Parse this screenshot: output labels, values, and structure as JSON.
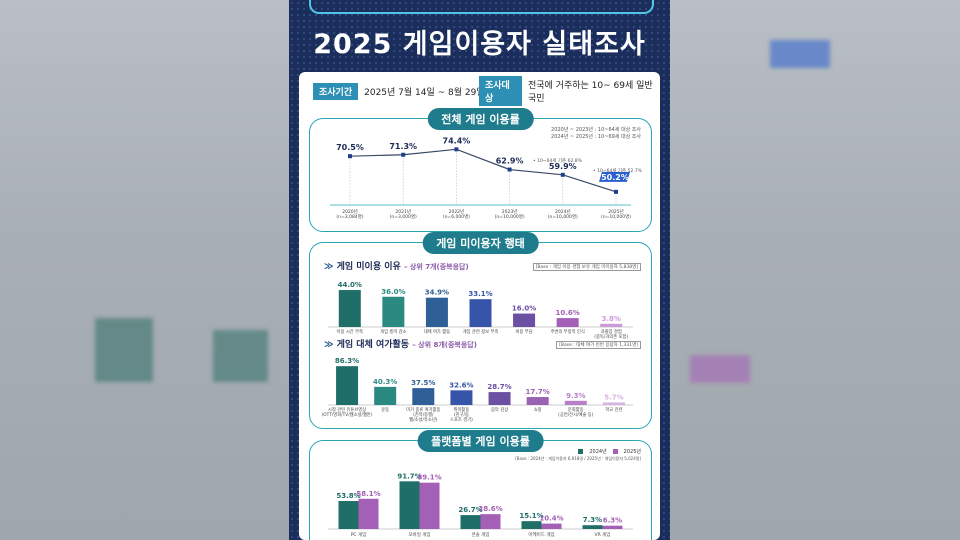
{
  "title": "2025 게임이용자 실태조사",
  "info": {
    "period_tag": "조사기간",
    "period": "2025년 7월 14일 ~ 8월 29일",
    "target_tag": "조사대상",
    "target": "전국에 거주하는 10~ 69세 일반국민"
  },
  "overall": {
    "pill": "전체 게임 이용률",
    "note1": "2020년 ~ 2023년 : 10~64세 대상 조사",
    "note2": "2024년 ~ 2025년 : 10~69세 대상 조사",
    "ann1": "• 10~64세 기준 62.8%",
    "ann2": "• 10~64세 기준 52.7%"
  },
  "nonuser": {
    "pill": "게임 미이용자 행태",
    "reason_title": "게임 미이용 이유",
    "reason_suffix": "– 상위 7개(중복응답)",
    "reason_base": "[Base : 게임 이용 경험 보유 게임 미이용자 5,838명]",
    "alt_title": "게임 대체 여가활동",
    "alt_suffix": "– 상위 8개(중복응답)",
    "alt_base": "[Base : 대체 여가 빈번 응답자 1,331명]"
  },
  "platform": {
    "pill": "플랫폼별 게임 이용률",
    "legend_2024": "2024년",
    "legend_2025": "2025년",
    "base": "[Base : 2024년 : 게임이용자 6,918명 / 2025년 : 게임이용자 5,024명]"
  },
  "chart_data": [
    {
      "type": "line",
      "title": "전체 게임 이용률",
      "x": [
        "2020년\n(n=3,084명)",
        "2021년\n(n=3,000명)",
        "2022년\n(n=6,000명)",
        "2023년\n(n=10,000명)",
        "2024년\n(n=10,000명)",
        "2025년\n(n=10,000명)"
      ],
      "values": [
        70.5,
        71.3,
        74.4,
        62.9,
        59.9,
        50.2
      ],
      "labels": [
        "70.5%",
        "71.3%",
        "74.4%",
        "62.9%",
        "59.9%",
        "50.2%"
      ],
      "colors": {
        "line": "#3a4a66",
        "point": "#1f3d8a",
        "highlight": "#2a5fd0"
      }
    },
    {
      "type": "bar",
      "title": "게임 미이용 이유",
      "categories": [
        "이용 시간 부족",
        "게임 흥미 감소",
        "대체 여가 활동",
        "게임 관련 정보 부족",
        "비용 부담",
        "주변의 부정적 인식",
        "과몰입 경험\n(중독/과의존 포함)"
      ],
      "values": [
        44.0,
        36.0,
        34.9,
        33.1,
        16.0,
        10.6,
        3.8
      ],
      "labels": [
        "44.0%",
        "36.0%",
        "34.9%",
        "33.1%",
        "16.0%",
        "10.6%",
        "3.8%"
      ],
      "colors": [
        "#1f6f68",
        "#2a8a82",
        "#2e5f96",
        "#3654a8",
        "#6b4fa3",
        "#a45fb7",
        "#cc9ad8"
      ],
      "ylim": [
        0,
        50
      ]
    },
    {
      "type": "bar",
      "title": "게임 대체 여가활동",
      "categories": [
        "시청 관련 유튜브영상\n(OTT/영화/TV/웹소설/웹툰)",
        "운동",
        "미가 종류 여가활동\n(친목/동행/\n웹/소설/유소년)",
        "취미활동\n(친구/동\n스포츠 경기)",
        "음악 감상",
        "쇼핑",
        "문화활동\n(공연/전시/예술 등)",
        "학교 관련"
      ],
      "values": [
        86.3,
        40.3,
        37.5,
        32.6,
        28.7,
        17.7,
        9.3,
        5.7
      ],
      "labels": [
        "86.3%",
        "40.3%",
        "37.5%",
        "32.6%",
        "28.7%",
        "17.7%",
        "9.3%",
        "5.7%"
      ],
      "colors": [
        "#1f6f68",
        "#2a8a82",
        "#2e5f96",
        "#3654a8",
        "#6b4fa3",
        "#9a62b5",
        "#b77fc8",
        "#d7b3e2"
      ],
      "ylim": [
        0,
        100
      ]
    },
    {
      "type": "bar",
      "title": "플랫폼별 게임 이용률",
      "categories": [
        "PC 게임",
        "모바일 게임",
        "콘솔 게임",
        "아케이드 게임",
        "VR 게임"
      ],
      "series": [
        {
          "name": "2024년",
          "values": [
            53.8,
            91.7,
            26.7,
            15.1,
            7.3
          ],
          "labels": [
            "53.8%",
            "91.7%",
            "26.7%",
            "15.1%",
            "7.3%"
          ],
          "color": "#1f6f68"
        },
        {
          "name": "2025년",
          "values": [
            58.1,
            89.1,
            28.6,
            10.4,
            6.3
          ],
          "labels": [
            "58.1%",
            "89.1%",
            "28.6%",
            "10.4%",
            "6.3%"
          ],
          "color": "#a45fb7"
        }
      ],
      "ylim": [
        0,
        100
      ]
    }
  ]
}
